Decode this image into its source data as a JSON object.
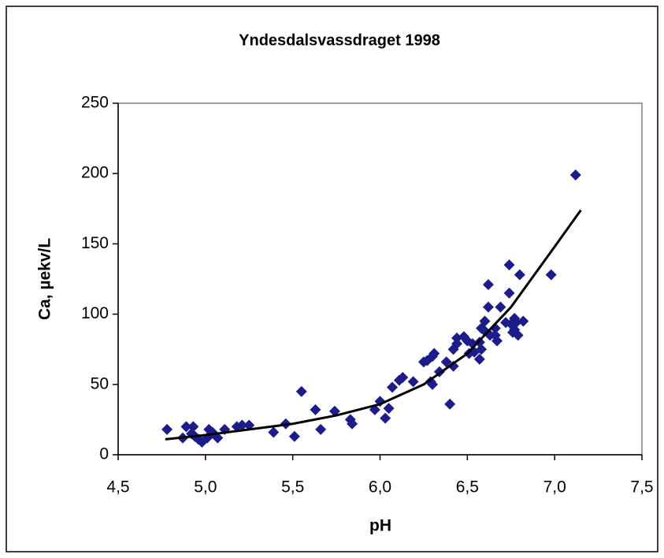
{
  "chart_data": {
    "type": "scatter",
    "title": "Yndesdalsvassdraget 1998",
    "xlabel": "pH",
    "ylabel": "Ca, µekv/L",
    "color": "#1c1c8a",
    "x": [
      4.78,
      4.87,
      4.89,
      4.93,
      4.92,
      4.94,
      4.96,
      4.98,
      5.01,
      5.02,
      5.04,
      5.07,
      5.11,
      5.18,
      5.21,
      5.25,
      5.39,
      5.46,
      5.51,
      5.55,
      5.63,
      5.66,
      5.74,
      5.83,
      5.84,
      5.97,
      6.0,
      6.03,
      6.05,
      6.07,
      6.11,
      6.13,
      6.19,
      6.25,
      6.27,
      6.29,
      6.3,
      6.3,
      6.31,
      6.34,
      6.38,
      6.4,
      6.42,
      6.42,
      6.44,
      6.44,
      6.48,
      6.5,
      6.53,
      6.51,
      6.54,
      6.57,
      6.57,
      6.58,
      6.6,
      6.6,
      6.58,
      6.63,
      6.66,
      6.66,
      6.67,
      6.62,
      6.69,
      6.62,
      6.74,
      6.74,
      6.72,
      6.75,
      6.77,
      6.77,
      6.76,
      6.78,
      6.79,
      6.82,
      6.8,
      6.98,
      7.12
    ],
    "values": [
      18,
      12,
      20,
      20,
      15,
      13,
      11,
      9,
      12,
      18,
      16,
      12,
      18,
      20,
      21,
      21,
      16,
      22,
      13,
      45,
      32,
      18,
      31,
      25,
      22,
      32,
      38,
      26,
      33,
      48,
      53,
      55,
      52,
      66,
      67,
      52,
      50,
      70,
      72,
      59,
      66,
      36,
      63,
      75,
      83,
      79,
      84,
      81,
      79,
      72,
      73,
      80,
      68,
      75,
      88,
      95,
      90,
      85,
      85,
      90,
      81,
      105,
      105,
      121,
      135,
      115,
      94,
      93,
      97,
      89,
      87,
      94,
      85,
      95,
      128,
      128,
      199
    ],
    "trendline": {
      "color": "#000000",
      "x": [
        4.77,
        5.0,
        5.25,
        5.5,
        5.75,
        6.0,
        6.25,
        6.5,
        6.75,
        7.0,
        7.15
      ],
      "values": [
        11,
        14,
        18,
        22,
        28,
        36,
        50,
        72,
        105,
        148,
        174
      ]
    },
    "xlim": [
      4.5,
      7.5
    ],
    "xticks": [
      {
        "value": 4.5,
        "label": "4,5"
      },
      {
        "value": 5.0,
        "label": "5,0"
      },
      {
        "value": 5.5,
        "label": "5,5"
      },
      {
        "value": 6.0,
        "label": "6,0"
      },
      {
        "value": 6.5,
        "label": "6,5"
      },
      {
        "value": 7.0,
        "label": "7,0"
      },
      {
        "value": 7.5,
        "label": "7,5"
      }
    ],
    "ylim": [
      0,
      250
    ],
    "yticks": [
      0,
      50,
      100,
      150,
      200,
      250
    ]
  }
}
